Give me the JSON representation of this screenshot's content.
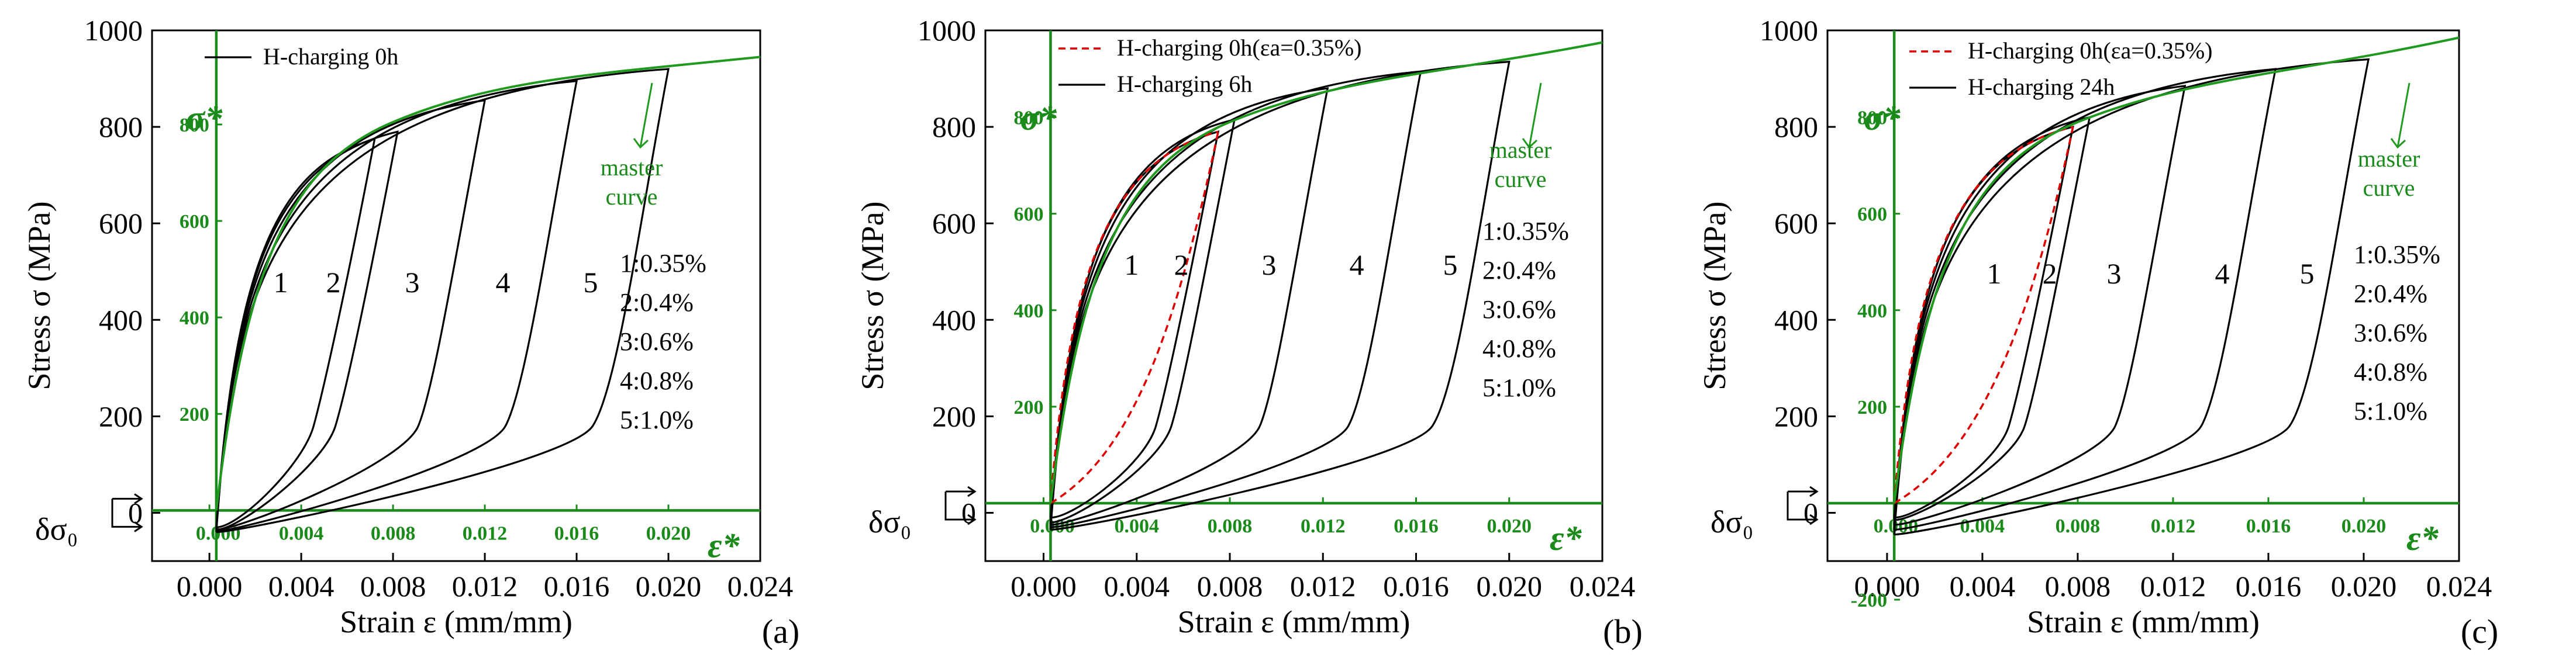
{
  "figure": {
    "panels": [
      "(a)",
      "(b)",
      "(c)"
    ]
  },
  "chart_data": [
    {
      "type": "line",
      "panel_label": "(a)",
      "xlabel": "Strain ε (mm/mm)",
      "ylabel": "Stress σ (MPa)",
      "xlim": [
        -0.0025,
        0.024
      ],
      "ylim": [
        -100,
        1000
      ],
      "xticks": [
        0.0,
        0.004,
        0.008,
        0.012,
        0.016,
        0.02,
        0.024
      ],
      "xtick_labels": [
        "0.000",
        "0.004",
        "0.008",
        "0.012",
        "0.016",
        "0.020",
        "0.024"
      ],
      "yticks": [
        0,
        200,
        400,
        600,
        800,
        1000
      ],
      "ytick_labels": [
        "0",
        "200",
        "400",
        "600",
        "800",
        "1000"
      ],
      "shifted_axes": {
        "x_symbol": "ε*",
        "y_symbol": "σ*",
        "origin_y": 5,
        "x_labels": [
          "0.000",
          "0.004",
          "0.008",
          "0.012",
          "0.016",
          "0.020"
        ],
        "y_labels": [
          "200",
          "400",
          "600",
          "800"
        ]
      },
      "legend": [
        {
          "name": "H-charging 0h",
          "style": "solid-black"
        }
      ],
      "curve_numbers": [
        "1",
        "2",
        "3",
        "4",
        "5"
      ],
      "strain_amplitudes": [
        "1:0.35%",
        "2:0.4%",
        "3:0.6%",
        "4:0.8%",
        "5:1.0%"
      ],
      "master_curve_label": [
        "master",
        "curve"
      ],
      "delta_label": "δσ₀",
      "series": [
        {
          "name": "loop 1 (0.35%)",
          "peak_strain": 0.0072,
          "peak_stress": 775,
          "min_stress": -30
        },
        {
          "name": "loop 2 (0.4%)",
          "peak_strain": 0.0082,
          "peak_stress": 790,
          "min_stress": -35
        },
        {
          "name": "loop 3 (0.6%)",
          "peak_strain": 0.012,
          "peak_stress": 855,
          "min_stress": -35
        },
        {
          "name": "loop 4 (0.8%)",
          "peak_strain": 0.016,
          "peak_stress": 895,
          "min_stress": -38
        },
        {
          "name": "loop 5 (1.0%)",
          "peak_strain": 0.02,
          "peak_stress": 920,
          "min_stress": -40
        }
      ],
      "master_curve": {
        "from_strain": 0.0003,
        "to_strain": 0.024,
        "end_stress": 945
      }
    },
    {
      "type": "line",
      "panel_label": "(b)",
      "xlabel": "Strain ε (mm/mm)",
      "ylabel": "Stress σ (MPa)",
      "xlim": [
        -0.0025,
        0.024
      ],
      "ylim": [
        -100,
        1000
      ],
      "xticks": [
        0.0,
        0.004,
        0.008,
        0.012,
        0.016,
        0.02,
        0.024
      ],
      "xtick_labels": [
        "0.000",
        "0.004",
        "0.008",
        "0.012",
        "0.016",
        "0.020",
        "0.024"
      ],
      "yticks": [
        0,
        200,
        400,
        600,
        800,
        1000
      ],
      "ytick_labels": [
        "0",
        "200",
        "400",
        "600",
        "800",
        "1000"
      ],
      "shifted_axes": {
        "x_symbol": "ε*",
        "y_symbol": "σ*",
        "origin_y": 20,
        "x_labels": [
          "0.000",
          "0.004",
          "0.008",
          "0.012",
          "0.016",
          "0.020"
        ],
        "y_labels": [
          "200",
          "400",
          "600",
          "800"
        ]
      },
      "legend": [
        {
          "name": "H-charging 0h(εa=0.35%)",
          "style": "dashed-red"
        },
        {
          "name": "H-charging 6h",
          "style": "solid-black"
        }
      ],
      "curve_numbers": [
        "1",
        "2",
        "3",
        "4",
        "5"
      ],
      "strain_amplitudes": [
        "1:0.35%",
        "2:0.4%",
        "3:0.6%",
        "4:0.8%",
        "5:1.0%"
      ],
      "master_curve_label": [
        "master",
        "curve"
      ],
      "delta_label": "δσ₀",
      "series": [
        {
          "name": "loop 1 (0.35%)",
          "peak_strain": 0.0075,
          "peak_stress": 790,
          "min_stress": -10
        },
        {
          "name": "loop 2 (0.4%)",
          "peak_strain": 0.0082,
          "peak_stress": 815,
          "min_stress": -20
        },
        {
          "name": "loop 3 (0.6%)",
          "peak_strain": 0.0122,
          "peak_stress": 880,
          "min_stress": -25
        },
        {
          "name": "loop 4 (0.8%)",
          "peak_strain": 0.0162,
          "peak_stress": 915,
          "min_stress": -30
        },
        {
          "name": "loop 5 (1.0%)",
          "peak_strain": 0.02,
          "peak_stress": 935,
          "min_stress": -35
        }
      ],
      "master_curve": {
        "from_strain": 0.0003,
        "to_strain": 0.024,
        "end_stress": 975
      }
    },
    {
      "type": "line",
      "panel_label": "(c)",
      "xlabel": "Strain ε (mm/mm)",
      "ylabel": "Stress σ (MPa)",
      "xlim": [
        -0.0025,
        0.024
      ],
      "ylim": [
        -100,
        1000
      ],
      "xticks": [
        0.0,
        0.004,
        0.008,
        0.012,
        0.016,
        0.02,
        0.024
      ],
      "xtick_labels": [
        "0.000",
        "0.004",
        "0.008",
        "0.012",
        "0.016",
        "0.020",
        "0.024"
      ],
      "yticks": [
        0,
        200,
        400,
        600,
        800,
        1000
      ],
      "ytick_labels": [
        "0",
        "200",
        "400",
        "600",
        "800",
        "1000"
      ],
      "shifted_axes": {
        "x_symbol": "ε*",
        "y_symbol": "σ*",
        "origin_y": 20,
        "x_labels": [
          "0.000",
          "0.004",
          "0.008",
          "0.012",
          "0.016",
          "0.020"
        ],
        "y_labels": [
          "-200",
          "200",
          "400",
          "600",
          "800"
        ]
      },
      "legend": [
        {
          "name": "H-charging 0h(εa=0.35%)",
          "style": "dashed-red"
        },
        {
          "name": "H-charging 24h",
          "style": "solid-black"
        }
      ],
      "curve_numbers": [
        "1",
        "2",
        "3",
        "4",
        "5"
      ],
      "strain_amplitudes": [
        "1:0.35%",
        "2:0.4%",
        "3:0.6%",
        "4:0.8%",
        "5:1.0%"
      ],
      "master_curve_label": [
        "master",
        "curve"
      ],
      "delta_label": "δσ₀",
      "series": [
        {
          "name": "loop 1 (0.35%)",
          "peak_strain": 0.0078,
          "peak_stress": 800,
          "min_stress": -10
        },
        {
          "name": "loop 2 (0.4%)",
          "peak_strain": 0.0085,
          "peak_stress": 820,
          "min_stress": -15
        },
        {
          "name": "loop 3 (0.6%)",
          "peak_strain": 0.0125,
          "peak_stress": 885,
          "min_stress": -25
        },
        {
          "name": "loop 4 (0.8%)",
          "peak_strain": 0.0163,
          "peak_stress": 920,
          "min_stress": -35
        },
        {
          "name": "loop 5 (1.0%)",
          "peak_strain": 0.0202,
          "peak_stress": 940,
          "min_stress": -45
        }
      ],
      "master_curve": {
        "from_strain": 0.0003,
        "to_strain": 0.024,
        "end_stress": 985
      }
    }
  ]
}
